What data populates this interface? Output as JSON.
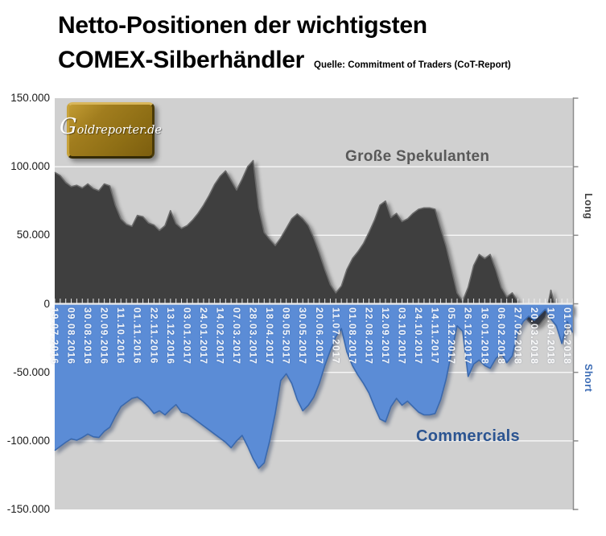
{
  "title": {
    "line1": "Netto-Positionen der wichtigsten",
    "line2": "COMEX-Silberhändler",
    "source": "Quelle: Commitment of Traders (CoT-Report)"
  },
  "logo": {
    "g": "G",
    "rest": "oldreporter.de",
    "full": "Goldreporter.de"
  },
  "right_axis": {
    "long": "Long",
    "short": "Short"
  },
  "y_axis_labels": [
    "150.000",
    "100.000",
    "50.000",
    "0",
    "-50.000",
    "-100.000",
    "-150.000"
  ],
  "series_labels": {
    "speculators": "Große Spekulanten",
    "commercials": "Commercials"
  },
  "colors": {
    "speculators_fill": "#3f3f3f",
    "speculators_edge": "#6b6b6b",
    "commercials_fill": "#5b8cd6",
    "commercials_edge": "#3a69ae",
    "plot_background": "#d0d0d0",
    "gridline": "rgba(255,255,255,0.85)",
    "zero_axis": "#ededed",
    "right_border": "#8c8c8c",
    "speculators_label": "#595959",
    "commercials_label": "#2b5491",
    "long_label": "#3f3f3f",
    "short_label": "#3c6cb5",
    "logo_gold": "#9c791b"
  },
  "chart_data": {
    "type": "area",
    "title": "Netto-Positionen der wichtigsten COMEX-Silberhändler",
    "source": "Quelle: Commitment of Traders (CoT-Report)",
    "xlabel": "",
    "ylabel": "Netto-Position (Kontrakte)",
    "ylim": [
      -150000,
      150000
    ],
    "y_tick_step": 50000,
    "grid": "horizontal",
    "legend_position": "labels-inside-plot",
    "x_tick_interval_weeks": 3,
    "x_tick_labels": [
      "19.07.2016",
      "09.08.2016",
      "30.08.2016",
      "20.09.2016",
      "11.10.2016",
      "01.11.2016",
      "22.11.2016",
      "13.12.2016",
      "03.01.2017",
      "24.01.2017",
      "14.02.2017",
      "07.03.2017",
      "28.03.2017",
      "18.04.2017",
      "09.05.2017",
      "30.05.2017",
      "20.06.2017",
      "11.07.2017",
      "01.08.2017",
      "22.08.2017",
      "12.09.2017",
      "03.10.2017",
      "24.10.2017",
      "14.11.2017",
      "05.12.2017",
      "26.12.2017",
      "16.01.2018",
      "06.02.2018",
      "27.02.2018",
      "20.03.2018",
      "10.04.2018",
      "01.05.2018"
    ],
    "series": [
      {
        "name": "Große Spekulanten",
        "side": "Long",
        "color": "#3f3f3f",
        "values": [
          96000,
          93500,
          88500,
          85500,
          86500,
          84500,
          87500,
          84000,
          82500,
          87500,
          86000,
          72000,
          62000,
          58000,
          56500,
          64500,
          63500,
          59000,
          57500,
          53500,
          57000,
          68000,
          58500,
          55000,
          57000,
          61000,
          66000,
          72000,
          79000,
          87000,
          93000,
          97000,
          90000,
          83000,
          91000,
          100000,
          104500,
          70000,
          52000,
          47000,
          42500,
          48000,
          55000,
          62000,
          65500,
          62000,
          57000,
          48000,
          37000,
          25000,
          14000,
          8000,
          13000,
          25000,
          33000,
          38000,
          44000,
          52000,
          61000,
          72000,
          75000,
          63000,
          66000,
          60000,
          62000,
          66000,
          69000,
          70000,
          70000,
          69000,
          55000,
          42000,
          25000,
          8000,
          2000,
          12000,
          28000,
          36000,
          33000,
          36000,
          25000,
          12000,
          5000,
          8000,
          2000,
          -8000,
          -13000,
          -17000,
          -15000,
          -10000,
          10000,
          -5000,
          -9000,
          -4000,
          -8000
        ]
      },
      {
        "name": "Commercials",
        "side": "Short",
        "color": "#5b8cd6",
        "values": [
          -107000,
          -104000,
          -101000,
          -98500,
          -99500,
          -97500,
          -95000,
          -97000,
          -97500,
          -93000,
          -90000,
          -82000,
          -75000,
          -72000,
          -69000,
          -68000,
          -71000,
          -75000,
          -80000,
          -78000,
          -81000,
          -77000,
          -73500,
          -79000,
          -80000,
          -83000,
          -86000,
          -89000,
          -92000,
          -95000,
          -98000,
          -101000,
          -105000,
          -100000,
          -96000,
          -104000,
          -113000,
          -120000,
          -116000,
          -100000,
          -80000,
          -56000,
          -51000,
          -58000,
          -70000,
          -78000,
          -74000,
          -68000,
          -58000,
          -45000,
          -34000,
          -24000,
          -18000,
          -35000,
          -45000,
          -52000,
          -58000,
          -65000,
          -75000,
          -84000,
          -86000,
          -75000,
          -69000,
          -74000,
          -71000,
          -75000,
          -79000,
          -81000,
          -81000,
          -80000,
          -70000,
          -55000,
          -35000,
          -16000,
          -20000,
          -53000,
          -44000,
          -41000,
          -45000,
          -47000,
          -40000,
          -36000,
          -43000,
          -38000,
          -20000,
          -13000,
          -9000,
          -12000,
          -8000,
          -4000,
          -11000,
          -16000,
          -29000,
          -13000,
          -21000
        ]
      }
    ]
  }
}
